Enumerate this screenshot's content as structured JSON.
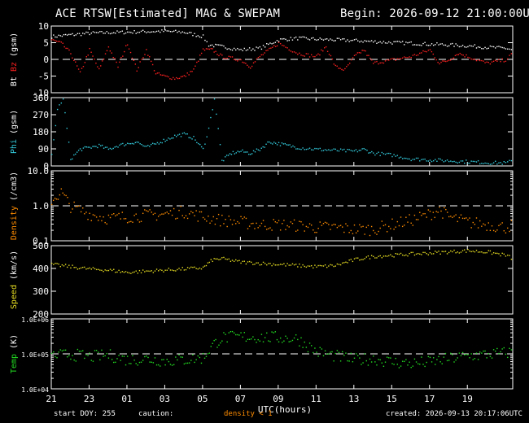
{
  "header": {
    "title": "ACE RTSW[Estimated] MAG & SWEPAM",
    "begin": "Begin: 2026-09-12 21:00:00UTC"
  },
  "footer": {
    "start_doy": "start DOY: 255",
    "caution": "caution:",
    "density_note": "density < 1",
    "created": "created: 2026-09-13 20:17:06UTC"
  },
  "colors": {
    "bt": "#ffffff",
    "bz": "#ff2020",
    "phi": "#33ccdd",
    "density": "#ff8c00",
    "speed": "#e6dd22",
    "temp": "#22dd22",
    "axes": "#ffffff",
    "background": "#000000"
  },
  "chart_data": {
    "type": "multi-panel time series",
    "x_axis": {
      "label": "UTC(hours)",
      "range_hours": [
        21,
        45.4
      ],
      "tick_labels": [
        "21",
        "23",
        "01",
        "03",
        "05",
        "07",
        "09",
        "11",
        "13",
        "15",
        "17",
        "19"
      ]
    },
    "panels": [
      {
        "id": "mag",
        "ylabel_parts": [
          {
            "text": "Bt",
            "color": "#ffffff"
          },
          {
            "text": " Bz",
            "color": "#ff2020"
          },
          {
            "text": " (gsm)",
            "color": "#ffffff"
          }
        ],
        "scale": "linear",
        "ylim": [
          -10,
          10
        ],
        "yticks": [
          -10,
          -5,
          0,
          5,
          10
        ],
        "tick_labels": [
          "-10",
          "-5",
          "0",
          "5",
          "10"
        ],
        "dashed_line": 0,
        "series": [
          {
            "name": "Bt",
            "color": "#ffffff",
            "style": "dots",
            "points": [
              [
                21,
                7
              ],
              [
                22,
                7.5
              ],
              [
                23,
                8
              ],
              [
                24,
                8.2
              ],
              [
                25,
                8.3
              ],
              [
                26,
                8.5
              ],
              [
                27,
                8.6
              ],
              [
                28,
                8.3
              ],
              [
                29,
                7
              ],
              [
                29.3,
                4.5
              ],
              [
                30,
                4
              ],
              [
                31,
                3
              ],
              [
                32,
                3.5
              ],
              [
                33,
                6
              ],
              [
                34,
                6.5
              ],
              [
                35,
                6.2
              ],
              [
                36,
                6
              ],
              [
                37,
                5.8
              ],
              [
                38,
                5.5
              ],
              [
                39,
                5.2
              ],
              [
                40,
                5
              ],
              [
                41,
                4.7
              ],
              [
                42,
                4.5
              ],
              [
                43,
                4.2
              ],
              [
                44,
                3.8
              ],
              [
                45,
                3.5
              ],
              [
                45.4,
                3
              ]
            ]
          },
          {
            "name": "Bz",
            "color": "#ff2020",
            "style": "dots",
            "points": [
              [
                21,
                6
              ],
              [
                21.5,
                5
              ],
              [
                22,
                2
              ],
              [
                22.5,
                -4
              ],
              [
                23,
                3
              ],
              [
                23.5,
                -3
              ],
              [
                24,
                4
              ],
              [
                24.5,
                -2
              ],
              [
                25,
                5
              ],
              [
                25.5,
                -3
              ],
              [
                26,
                3
              ],
              [
                26.5,
                -4
              ],
              [
                27,
                -5
              ],
              [
                27.5,
                -5.5
              ],
              [
                28,
                -5
              ],
              [
                28.5,
                -3
              ],
              [
                29,
                3
              ],
              [
                29.5,
                3
              ],
              [
                30,
                1
              ],
              [
                31,
                0
              ],
              [
                31.5,
                -2
              ],
              [
                32,
                1
              ],
              [
                32.5,
                3
              ],
              [
                33,
                5
              ],
              [
                34,
                2
              ],
              [
                35,
                1
              ],
              [
                35.5,
                4
              ],
              [
                36,
                -2
              ],
              [
                36.5,
                -3
              ],
              [
                37,
                1
              ],
              [
                37.5,
                3
              ],
              [
                38,
                -1
              ],
              [
                39,
                0
              ],
              [
                40,
                1
              ],
              [
                41,
                3
              ],
              [
                41.5,
                -1
              ],
              [
                42,
                0
              ],
              [
                42.5,
                2
              ],
              [
                43,
                1
              ],
              [
                44,
                -1
              ],
              [
                45,
                0
              ],
              [
                45.4,
                2
              ]
            ]
          }
        ]
      },
      {
        "id": "phi",
        "ylabel_parts": [
          {
            "text": "Phi",
            "color": "#33ccdd"
          },
          {
            "text": " (gsm)",
            "color": "#ffffff"
          }
        ],
        "scale": "linear",
        "ylim": [
          0,
          360
        ],
        "yticks": [
          0,
          90,
          180,
          270,
          360
        ],
        "tick_labels": [
          "0",
          "90",
          "180",
          "270",
          "360"
        ],
        "series": [
          {
            "name": "Phi",
            "color": "#33ccdd",
            "style": "dots",
            "points": [
              [
                21,
                60
              ],
              [
                21.3,
                300
              ],
              [
                21.6,
                360
              ],
              [
                22,
                40
              ],
              [
                22.5,
                90
              ],
              [
                23,
                100
              ],
              [
                23.5,
                110
              ],
              [
                24,
                90
              ],
              [
                24.5,
                110
              ],
              [
                25,
                120
              ],
              [
                25.5,
                130
              ],
              [
                26,
                100
              ],
              [
                26.5,
                120
              ],
              [
                27,
                140
              ],
              [
                27.5,
                160
              ],
              [
                28,
                170
              ],
              [
                28.5,
                150
              ],
              [
                29,
                90
              ],
              [
                29.3,
                200
              ],
              [
                29.6,
                360
              ],
              [
                30,
                30
              ],
              [
                30.5,
                70
              ],
              [
                31,
                80
              ],
              [
                31.5,
                70
              ],
              [
                32,
                90
              ],
              [
                32.5,
                130
              ],
              [
                33,
                120
              ],
              [
                33.5,
                110
              ],
              [
                34,
                100
              ],
              [
                35,
                90
              ],
              [
                36,
                85
              ],
              [
                37,
                80
              ],
              [
                37.5,
                90
              ],
              [
                38,
                70
              ],
              [
                39,
                60
              ],
              [
                40,
                40
              ],
              [
                41,
                35
              ],
              [
                42,
                30
              ],
              [
                43,
                25
              ],
              [
                44,
                20
              ],
              [
                45,
                18
              ],
              [
                45.4,
                30
              ]
            ]
          }
        ]
      },
      {
        "id": "density",
        "ylabel_parts": [
          {
            "text": "Density",
            "color": "#ff8c00"
          },
          {
            "text": " (/cm3)",
            "color": "#ffffff"
          }
        ],
        "scale": "log",
        "ylim": [
          0.1,
          10
        ],
        "yticks": [
          0.1,
          1.0,
          10.0
        ],
        "tick_labels": [
          "0.1",
          "1.0",
          "10.0"
        ],
        "dashed_line": 1.0,
        "series": [
          {
            "name": "Density",
            "color": "#ff8c00",
            "style": "dots",
            "points": [
              [
                21,
                1.5
              ],
              [
                21.5,
                2.5
              ],
              [
                22,
                1
              ],
              [
                23,
                0.6
              ],
              [
                24,
                0.45
              ],
              [
                25,
                0.5
              ],
              [
                26,
                0.55
              ],
              [
                27,
                0.6
              ],
              [
                28,
                0.7
              ],
              [
                29,
                0.5
              ],
              [
                30,
                0.4
              ],
              [
                31,
                0.35
              ],
              [
                32,
                0.3
              ],
              [
                33,
                0.3
              ],
              [
                34,
                0.28
              ],
              [
                35,
                0.25
              ],
              [
                36,
                0.25
              ],
              [
                37,
                0.22
              ],
              [
                38,
                0.22
              ],
              [
                39,
                0.3
              ],
              [
                40,
                0.4
              ],
              [
                41,
                0.6
              ],
              [
                41.5,
                0.8
              ],
              [
                42,
                0.5
              ],
              [
                43,
                0.35
              ],
              [
                44,
                0.3
              ],
              [
                45,
                0.25
              ],
              [
                45.4,
                0.3
              ]
            ]
          }
        ]
      },
      {
        "id": "speed",
        "ylabel_parts": [
          {
            "text": "Speed",
            "color": "#e6dd22"
          },
          {
            "text": " (km/s)",
            "color": "#ffffff"
          }
        ],
        "scale": "linear",
        "ylim": [
          200,
          500
        ],
        "yticks": [
          200,
          300,
          400,
          500
        ],
        "tick_labels": [
          "200",
          "300",
          "400",
          "500"
        ],
        "series": [
          {
            "name": "Speed",
            "color": "#e6dd22",
            "style": "dots",
            "points": [
              [
                21,
                420
              ],
              [
                22,
                410
              ],
              [
                23,
                400
              ],
              [
                24,
                395
              ],
              [
                25,
                385
              ],
              [
                26,
                390
              ],
              [
                27,
                395
              ],
              [
                28,
                400
              ],
              [
                29,
                405
              ],
              [
                29.5,
                440
              ],
              [
                30,
                445
              ],
              [
                31,
                430
              ],
              [
                32,
                425
              ],
              [
                33,
                420
              ],
              [
                34,
                415
              ],
              [
                35,
                410
              ],
              [
                36,
                415
              ],
              [
                37,
                440
              ],
              [
                38,
                455
              ],
              [
                39,
                460
              ],
              [
                40,
                465
              ],
              [
                41,
                470
              ],
              [
                42,
                475
              ],
              [
                43,
                480
              ],
              [
                44,
                475
              ],
              [
                45,
                460
              ],
              [
                45.4,
                445
              ]
            ]
          }
        ]
      },
      {
        "id": "temp",
        "ylabel_parts": [
          {
            "text": "Temp",
            "color": "#22dd22"
          },
          {
            "text": " (K)",
            "color": "#ffffff"
          }
        ],
        "scale": "log",
        "ylim": [
          10000,
          1000000
        ],
        "yticks": [
          10000,
          100000,
          1000000
        ],
        "tick_labels": [
          "1.0E+04",
          "1.0E+05",
          "1.0E+06"
        ],
        "dashed_line": 100000,
        "series": [
          {
            "name": "Temp",
            "color": "#22dd22",
            "style": "dots",
            "points": [
              [
                21,
                90000
              ],
              [
                22,
                100000
              ],
              [
                23,
                85000
              ],
              [
                24,
                95000
              ],
              [
                25,
                70000
              ],
              [
                26,
                75000
              ],
              [
                27,
                65000
              ],
              [
                28,
                70000
              ],
              [
                29,
                80000
              ],
              [
                29.5,
                180000
              ],
              [
                30,
                300000
              ],
              [
                31,
                320000
              ],
              [
                32,
                310000
              ],
              [
                33,
                300000
              ],
              [
                34,
                280000
              ],
              [
                35,
                120000
              ],
              [
                36,
                90000
              ],
              [
                37,
                70000
              ],
              [
                38,
                75000
              ],
              [
                39,
                60000
              ],
              [
                40,
                55000
              ],
              [
                41,
                60000
              ],
              [
                42,
                75000
              ],
              [
                43,
                90000
              ],
              [
                44,
                100000
              ],
              [
                45,
                110000
              ],
              [
                45.4,
                120000
              ]
            ]
          }
        ]
      }
    ]
  }
}
